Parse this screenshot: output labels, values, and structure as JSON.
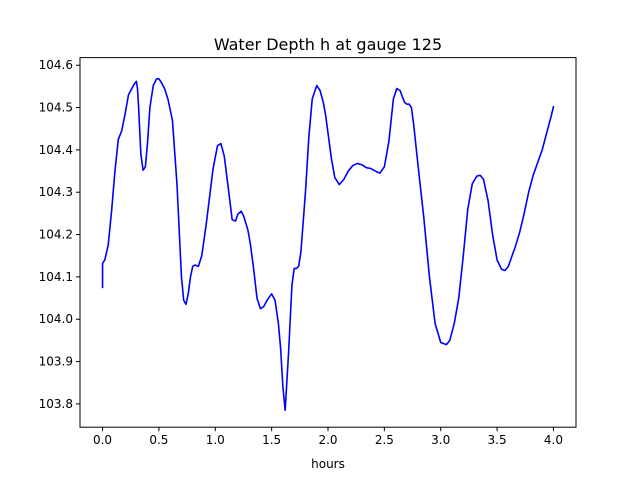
{
  "chart_data": {
    "type": "line",
    "title": "Water Depth h at gauge 125",
    "xlabel": "hours",
    "ylabel": "",
    "xlim": [
      -0.2,
      4.2
    ],
    "ylim": [
      103.745,
      104.618
    ],
    "xticks": [
      0.0,
      0.5,
      1.0,
      1.5,
      2.0,
      2.5,
      3.0,
      3.5,
      4.0
    ],
    "xtick_labels": [
      "0.0",
      "0.5",
      "1.0",
      "1.5",
      "2.0",
      "2.5",
      "3.0",
      "3.5",
      "4.0"
    ],
    "yticks": [
      103.8,
      103.9,
      104.0,
      104.1,
      104.2,
      104.3,
      104.4,
      104.5,
      104.6
    ],
    "ytick_labels": [
      "103.8",
      "103.9",
      "104.0",
      "104.1",
      "104.2",
      "104.3",
      "104.4",
      "104.5",
      "104.6"
    ],
    "grid": false,
    "series": [
      {
        "color": "#0000ff",
        "x": [
          0.0,
          0.0,
          0.02,
          0.05,
          0.08,
          0.11,
          0.14,
          0.17,
          0.2,
          0.23,
          0.25,
          0.28,
          0.3,
          0.31,
          0.32,
          0.34,
          0.36,
          0.38,
          0.4,
          0.42,
          0.45,
          0.48,
          0.5,
          0.52,
          0.55,
          0.58,
          0.62,
          0.66,
          0.7,
          0.72,
          0.74,
          0.76,
          0.78,
          0.8,
          0.82,
          0.85,
          0.88,
          0.92,
          0.95,
          0.98,
          1.02,
          1.05,
          1.08,
          1.12,
          1.15,
          1.18,
          1.2,
          1.23,
          1.25,
          1.27,
          1.29,
          1.31,
          1.34,
          1.37,
          1.4,
          1.43,
          1.46,
          1.5,
          1.53,
          1.56,
          1.58,
          1.6,
          1.62,
          1.65,
          1.68,
          1.7,
          1.72,
          1.74,
          1.76,
          1.8,
          1.83,
          1.86,
          1.9,
          1.93,
          1.96,
          1.98,
          2.0,
          2.03,
          2.06,
          2.1,
          2.14,
          2.18,
          2.22,
          2.26,
          2.3,
          2.34,
          2.38,
          2.42,
          2.46,
          2.5,
          2.54,
          2.58,
          2.61,
          2.64,
          2.66,
          2.68,
          2.7,
          2.72,
          2.74,
          2.76,
          2.8,
          2.85,
          2.9,
          2.95,
          3.0,
          3.05,
          3.08,
          3.12,
          3.16,
          3.2,
          3.24,
          3.28,
          3.32,
          3.35,
          3.38,
          3.42,
          3.46,
          3.5,
          3.54,
          3.57,
          3.6,
          3.63,
          3.66,
          3.7,
          3.74,
          3.78,
          3.82,
          3.86,
          3.9,
          3.94,
          3.98,
          4.0
        ],
        "y": [
          104.075,
          104.132,
          104.14,
          104.175,
          104.255,
          104.35,
          104.425,
          104.445,
          104.485,
          104.53,
          104.54,
          104.555,
          104.562,
          104.545,
          104.5,
          104.39,
          104.352,
          104.36,
          104.42,
          104.5,
          104.552,
          104.568,
          104.568,
          104.56,
          104.545,
          104.52,
          104.47,
          104.32,
          104.1,
          104.045,
          104.035,
          104.06,
          104.1,
          104.125,
          104.128,
          104.125,
          104.15,
          104.225,
          104.29,
          104.355,
          104.41,
          104.415,
          104.385,
          104.3,
          104.235,
          104.232,
          104.248,
          104.255,
          104.245,
          104.228,
          104.21,
          104.18,
          104.12,
          104.05,
          104.025,
          104.03,
          104.045,
          104.06,
          104.045,
          103.99,
          103.93,
          103.84,
          103.785,
          103.92,
          104.08,
          104.12,
          104.12,
          104.125,
          104.16,
          104.3,
          104.43,
          104.52,
          104.552,
          104.54,
          104.51,
          104.48,
          104.44,
          104.38,
          104.335,
          104.318,
          104.33,
          104.35,
          104.363,
          104.368,
          104.365,
          104.358,
          104.356,
          104.35,
          104.345,
          104.36,
          104.42,
          104.52,
          104.545,
          104.54,
          104.525,
          104.512,
          104.508,
          104.508,
          104.5,
          104.46,
          104.36,
          104.24,
          104.1,
          103.99,
          103.945,
          103.94,
          103.95,
          103.99,
          104.05,
          104.15,
          104.26,
          104.32,
          104.338,
          104.34,
          104.33,
          104.28,
          104.2,
          104.14,
          104.118,
          104.115,
          104.125,
          104.148,
          104.17,
          104.205,
          104.25,
          104.3,
          104.34,
          104.37,
          104.4,
          104.44,
          104.48,
          104.502
        ]
      }
    ]
  }
}
